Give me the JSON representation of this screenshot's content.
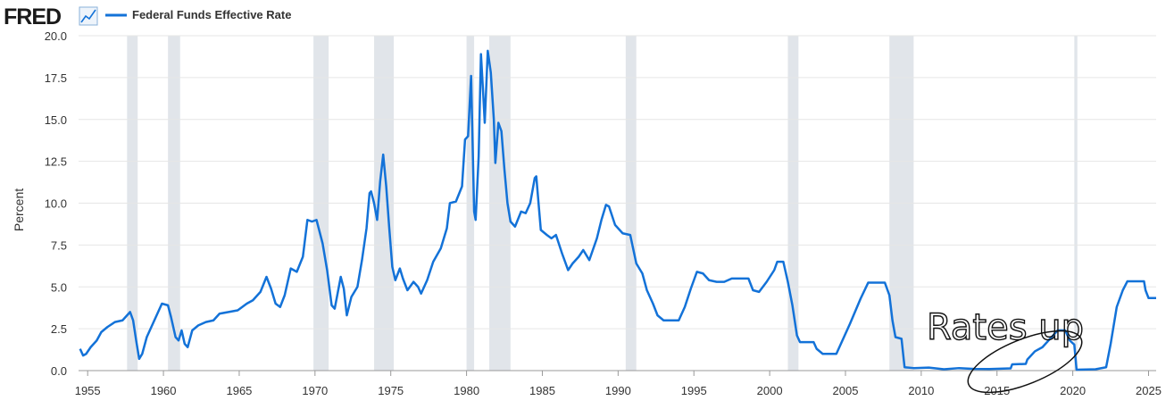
{
  "header": {
    "logo": "FRED"
  },
  "chart_data": {
    "type": "line",
    "y_label": "Percent",
    "annotation": "Rates up",
    "xlim": [
      1954.4,
      2025.5
    ],
    "xticks": [
      1955,
      1960,
      1965,
      1970,
      1975,
      1980,
      1985,
      1990,
      1995,
      2000,
      2005,
      2010,
      2015,
      2020,
      2025
    ],
    "ylim": [
      0,
      20
    ],
    "yticks": [
      {
        "value": 0,
        "label": "0.0"
      },
      2.5,
      {
        "value": 5,
        "label": "5.0"
      },
      7.5,
      {
        "value": 10,
        "label": "10.0"
      },
      12.5,
      {
        "value": 15,
        "label": "15.0"
      },
      17.5,
      {
        "value": 20,
        "label": "20.0"
      }
    ],
    "grid": true,
    "shaded_periods": [
      [
        1957.6,
        1958.3
      ],
      [
        1960.3,
        1961.1
      ],
      [
        1969.9,
        1970.9
      ],
      [
        1973.9,
        1975.2
      ],
      [
        1980.0,
        1980.5
      ],
      [
        1981.5,
        1982.9
      ],
      [
        1990.5,
        1991.2
      ],
      [
        2001.2,
        2001.9
      ],
      [
        2007.9,
        2009.5
      ],
      [
        2020.1,
        2020.3
      ]
    ],
    "shade_color": "#e1e5ea",
    "x": [
      1954.5,
      1954.7,
      1954.9,
      1955.2,
      1955.6,
      1955.9,
      1956.3,
      1956.8,
      1957.3,
      1957.8,
      1958.0,
      1958.2,
      1958.4,
      1958.6,
      1958.9,
      1959.3,
      1959.7,
      1959.9,
      1960.3,
      1960.5,
      1960.8,
      1961.0,
      1961.2,
      1961.4,
      1961.6,
      1961.9,
      1962.3,
      1962.8,
      1963.3,
      1963.7,
      1964.3,
      1964.9,
      1965.5,
      1965.9,
      1966.4,
      1966.8,
      1967.1,
      1967.4,
      1967.7,
      1968.0,
      1968.4,
      1968.8,
      1969.2,
      1969.5,
      1969.8,
      1970.1,
      1970.5,
      1970.8,
      1971.1,
      1971.3,
      1971.7,
      1971.9,
      1972.1,
      1972.4,
      1972.8,
      1973.1,
      1973.4,
      1973.6,
      1973.7,
      1973.9,
      1974.1,
      1974.3,
      1974.5,
      1974.7,
      1974.9,
      1975.1,
      1975.3,
      1975.6,
      1975.8,
      1976.1,
      1976.5,
      1976.8,
      1977.0,
      1977.4,
      1977.8,
      1978.3,
      1978.7,
      1978.9,
      1979.3,
      1979.7,
      1979.9,
      1980.1,
      1980.3,
      1980.5,
      1980.6,
      1980.8,
      1980.95,
      1981.1,
      1981.2,
      1981.4,
      1981.6,
      1981.8,
      1981.9,
      1982.1,
      1982.3,
      1982.5,
      1982.7,
      1982.9,
      1983.2,
      1983.6,
      1983.9,
      1984.2,
      1984.5,
      1984.6,
      1984.9,
      1985.3,
      1985.6,
      1985.9,
      1986.3,
      1986.7,
      1987.0,
      1987.4,
      1987.7,
      1988.1,
      1988.6,
      1988.9,
      1989.2,
      1989.4,
      1989.8,
      1990.3,
      1990.8,
      1991.2,
      1991.6,
      1991.9,
      1992.3,
      1992.6,
      1993.0,
      1993.6,
      1994.0,
      1994.4,
      1994.8,
      1995.2,
      1995.6,
      1996.0,
      1996.5,
      1997.0,
      1997.5,
      1998.0,
      1998.6,
      1998.9,
      1999.3,
      1999.8,
      2000.3,
      2000.5,
      2000.9,
      2001.2,
      2001.5,
      2001.8,
      2002.0,
      2002.9,
      2003.1,
      2003.5,
      2004.4,
      2004.6,
      2005.3,
      2006.0,
      2006.5,
      2007.6,
      2007.9,
      2008.1,
      2008.3,
      2008.7,
      2008.9,
      2009.5,
      2010.5,
      2011.5,
      2012.5,
      2013.5,
      2014.5,
      2015.9,
      2016.0,
      2016.9,
      2017.0,
      2017.5,
      2018.0,
      2018.5,
      2019.0,
      2019.5,
      2019.8,
      2020.1,
      2020.25,
      2021.5,
      2022.2,
      2022.5,
      2022.9,
      2023.3,
      2023.6,
      2024.7,
      2024.8,
      2025.0,
      2025.5
    ],
    "series": [
      {
        "name": "Federal Funds Effective Rate",
        "color": "#1372d8",
        "values": [
          1.3,
          0.9,
          1.0,
          1.4,
          1.8,
          2.3,
          2.6,
          2.9,
          3.0,
          3.5,
          3.0,
          1.8,
          0.7,
          1.0,
          2.0,
          2.8,
          3.6,
          4.0,
          3.9,
          3.2,
          2.0,
          1.8,
          2.4,
          1.6,
          1.4,
          2.4,
          2.7,
          2.9,
          3.0,
          3.4,
          3.5,
          3.6,
          4.0,
          4.2,
          4.7,
          5.6,
          4.9,
          4.0,
          3.8,
          4.5,
          6.1,
          5.9,
          6.8,
          9.0,
          8.9,
          9.0,
          7.6,
          6.0,
          3.9,
          3.7,
          5.6,
          4.9,
          3.3,
          4.4,
          5.0,
          6.6,
          8.5,
          10.6,
          10.7,
          10.0,
          9.0,
          11.3,
          12.9,
          11.0,
          8.5,
          6.2,
          5.4,
          6.1,
          5.5,
          4.8,
          5.3,
          5.0,
          4.6,
          5.4,
          6.5,
          7.3,
          8.5,
          10.0,
          10.1,
          11.0,
          13.8,
          14.0,
          17.6,
          9.5,
          9.0,
          12.8,
          18.9,
          16.5,
          14.8,
          19.1,
          17.8,
          15.0,
          12.4,
          14.8,
          14.3,
          12.0,
          10.0,
          8.9,
          8.6,
          9.5,
          9.4,
          10.0,
          11.5,
          11.6,
          8.4,
          8.1,
          7.9,
          8.1,
          7.0,
          6.0,
          6.4,
          6.8,
          7.2,
          6.6,
          7.9,
          9.0,
          9.9,
          9.8,
          8.7,
          8.2,
          8.1,
          6.4,
          5.8,
          4.8,
          4.0,
          3.3,
          3.0,
          3.0,
          3.0,
          3.8,
          4.9,
          5.9,
          5.8,
          5.4,
          5.3,
          5.3,
          5.5,
          5.5,
          5.5,
          4.8,
          4.7,
          5.3,
          6.0,
          6.5,
          6.5,
          5.3,
          3.9,
          2.1,
          1.7,
          1.7,
          1.3,
          1.0,
          1.0,
          1.4,
          2.8,
          4.3,
          5.25,
          5.25,
          4.5,
          3.0,
          2.0,
          1.9,
          0.2,
          0.15,
          0.18,
          0.08,
          0.15,
          0.1,
          0.09,
          0.13,
          0.37,
          0.4,
          0.66,
          1.15,
          1.4,
          1.9,
          2.4,
          2.4,
          1.8,
          1.55,
          0.05,
          0.08,
          0.2,
          1.6,
          3.8,
          4.8,
          5.33,
          5.33,
          4.8,
          4.33,
          4.33
        ]
      }
    ]
  }
}
